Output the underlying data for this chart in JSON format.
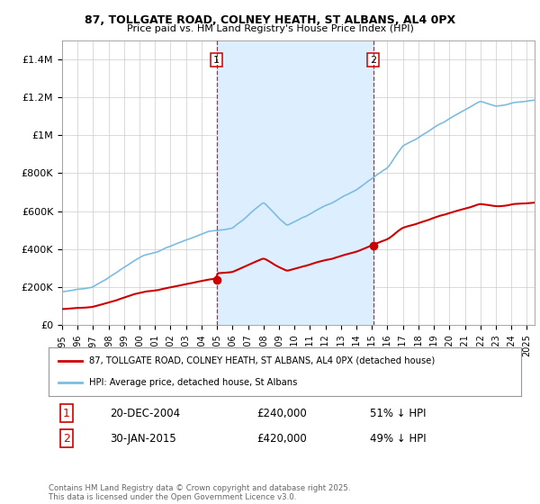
{
  "title_line1": "87, TOLLGATE ROAD, COLNEY HEATH, ST ALBANS, AL4 0PX",
  "title_line2": "Price paid vs. HM Land Registry's House Price Index (HPI)",
  "hpi_line_color": "#7bbde0",
  "price_color": "#cc0000",
  "sale1_x": 2004.97,
  "sale1_price": 240000,
  "sale2_x": 2015.08,
  "sale2_price": 420000,
  "legend_line1": "87, TOLLGATE ROAD, COLNEY HEATH, ST ALBANS, AL4 0PX (detached house)",
  "legend_line2": "HPI: Average price, detached house, St Albans",
  "footer": "Contains HM Land Registry data © Crown copyright and database right 2025.\nThis data is licensed under the Open Government Licence v3.0.",
  "ylim": [
    0,
    1500000
  ],
  "yticks": [
    0,
    200000,
    400000,
    600000,
    800000,
    1000000,
    1200000,
    1400000
  ],
  "ytick_labels": [
    "£0",
    "£200K",
    "£400K",
    "£600K",
    "£800K",
    "£1M",
    "£1.2M",
    "£1.4M"
  ],
  "span_color": "#ddeeff",
  "background_color": "#ffffff"
}
